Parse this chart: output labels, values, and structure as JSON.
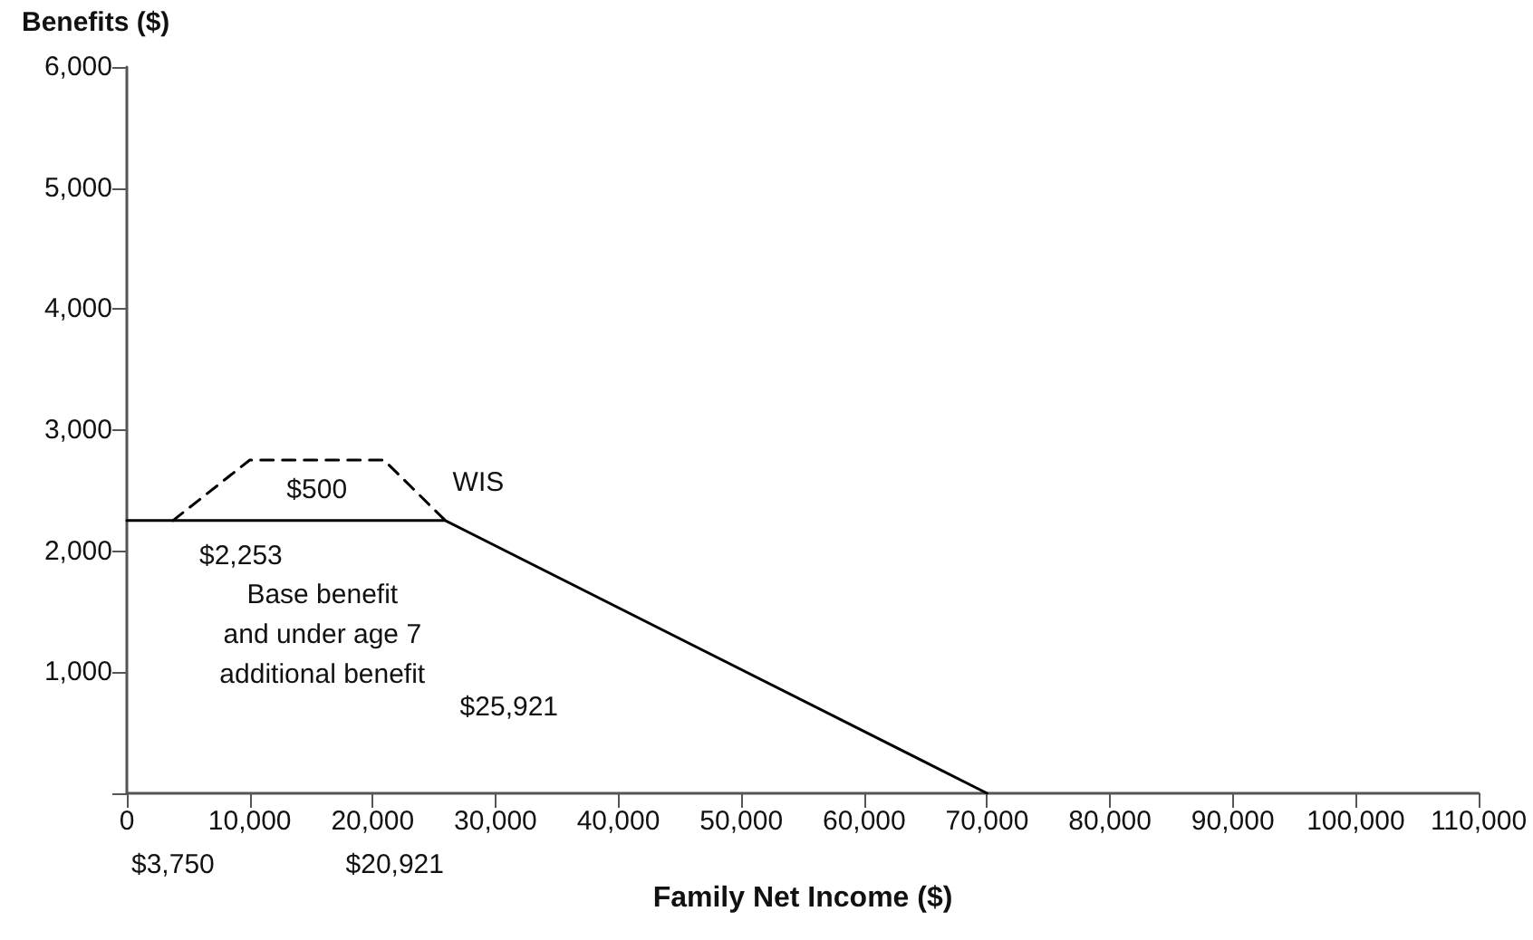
{
  "chart_data": {
    "type": "line",
    "xlabel": "Family Net Income ($)",
    "ylabel": "Benefits ($)",
    "xlim": [
      0,
      110000
    ],
    "xticks": [
      0,
      {
        "value": 10000,
        "label": "10,000"
      },
      {
        "value": 20000,
        "label": "20,000"
      },
      {
        "value": 30000,
        "label": "30,000"
      },
      {
        "value": 40000,
        "label": "40,000"
      },
      {
        "value": 50000,
        "label": "50,000"
      },
      {
        "value": 60000,
        "label": "60,000"
      },
      {
        "value": 70000,
        "label": "70,000"
      },
      {
        "value": 80000,
        "label": "80,000"
      },
      {
        "value": 90000,
        "label": "90,000"
      },
      {
        "value": 100000,
        "label": "100,000"
      },
      {
        "value": 110000,
        "label": "110,000"
      }
    ],
    "ylim": [
      0,
      6000
    ],
    "yticks": [
      {
        "value": 0,
        "label": null
      },
      {
        "value": 1000,
        "label": "1,000"
      },
      {
        "value": 2000,
        "label": "2,000"
      },
      {
        "value": 3000,
        "label": "3,000"
      },
      {
        "value": 4000,
        "label": "4,000"
      },
      {
        "value": 5000,
        "label": "5,000"
      },
      {
        "value": 6000,
        "label": "6,000"
      }
    ],
    "grid": false,
    "legend": false,
    "marker": "none",
    "series": [
      {
        "name": "Base benefit and under age 7 additional benefit",
        "color": "#000000",
        "line_style": "solid",
        "x": [
          0,
          25921,
          70000
        ],
        "values": [
          2253,
          2253,
          0
        ]
      },
      {
        "name": "WIS",
        "color": "#000000",
        "line_style": "dashed",
        "x": [
          3750,
          10000,
          20921,
          25921
        ],
        "values": [
          2253,
          2753,
          2753,
          2253
        ]
      }
    ],
    "annotations": [
      "$500",
      {
        "text": "$2,253",
        "x": 0,
        "y": 2253
      },
      "$3,750",
      "$20,921",
      "$25,921"
    ]
  }
}
